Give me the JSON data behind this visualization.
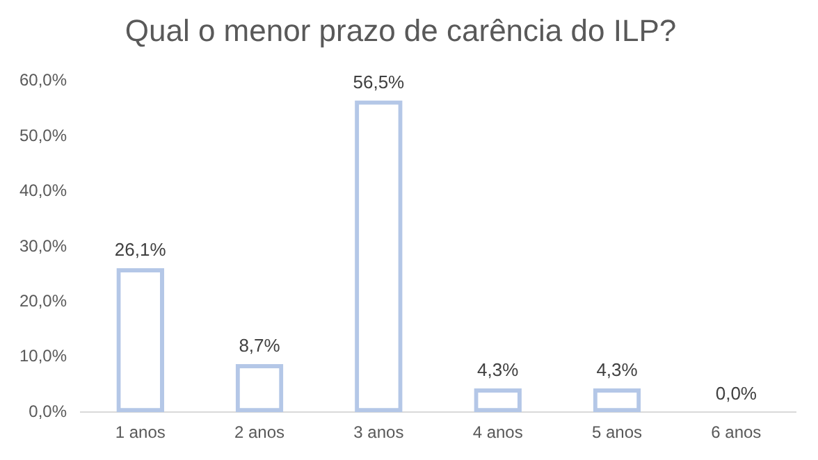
{
  "chart_data": {
    "type": "bar",
    "title": "Qual o menor prazo de carência do ILP?",
    "categories": [
      "1 anos",
      "2 anos",
      "3 anos",
      "4 anos",
      "5 anos",
      "6 anos"
    ],
    "values": [
      26.1,
      8.7,
      56.5,
      4.3,
      4.3,
      0
    ],
    "value_labels": [
      "26,1%",
      "8,7%",
      "56,5%",
      "4,3%",
      "4,3%",
      "0,0%"
    ],
    "color": "#b4c7e7",
    "ylim": [
      0,
      60
    ],
    "yticks": [
      {
        "value": 0,
        "label": "0,0%"
      },
      {
        "value": 10,
        "label": "10,0%"
      },
      {
        "value": 20,
        "label": "20,0%"
      },
      {
        "value": 30,
        "label": "30,0%"
      },
      {
        "value": 40,
        "label": "40,0%"
      },
      {
        "value": 50,
        "label": "50,0%"
      },
      {
        "value": 60,
        "label": "60,0%"
      }
    ],
    "grid": false,
    "legend": false
  }
}
